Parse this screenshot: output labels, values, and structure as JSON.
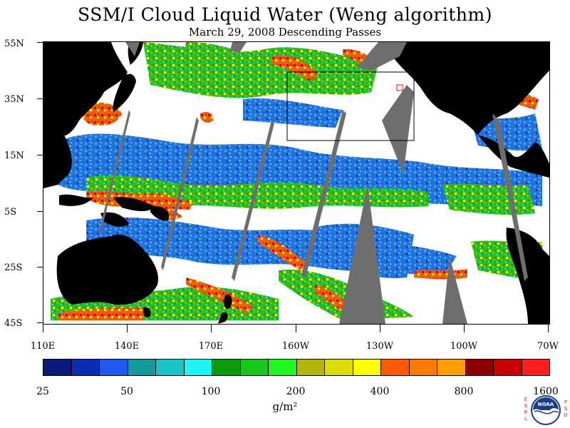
{
  "title": "SSM/I Cloud Liquid Water (Weng algorithm)",
  "subtitle": "March 29, 2008  Descending Passes",
  "map": {
    "lat_labels": [
      "55N",
      "35N",
      "15N",
      "5S",
      "25S",
      "45S"
    ],
    "lon_labels": [
      "110E",
      "140E",
      "170E",
      "160W",
      "130W",
      "100W",
      "70W"
    ],
    "land_color": "#000000",
    "no_data_color": "#6e6e6e",
    "box_color": "#000000",
    "marker_color": "#ff0000"
  },
  "colorbar": {
    "colors": [
      "#0a1a7a",
      "#0a2db4",
      "#1e5af0",
      "#139a9a",
      "#18c4c4",
      "#1ef4f4",
      "#0a9a0a",
      "#18c818",
      "#1ef81e",
      "#b4b40a",
      "#dcdc0a",
      "#ffff00",
      "#ff5a00",
      "#ff7a00",
      "#ff9e00",
      "#8c0000",
      "#c80000",
      "#ff1e1e"
    ],
    "labels": [
      "25",
      "50",
      "100",
      "200",
      "400",
      "800",
      "1600"
    ],
    "units": "g/m²"
  },
  "logo": {
    "text": "NOAA",
    "left_letters": [
      "E",
      "S",
      "R",
      "L"
    ],
    "right_letters": [
      "P",
      "S",
      "D"
    ]
  }
}
